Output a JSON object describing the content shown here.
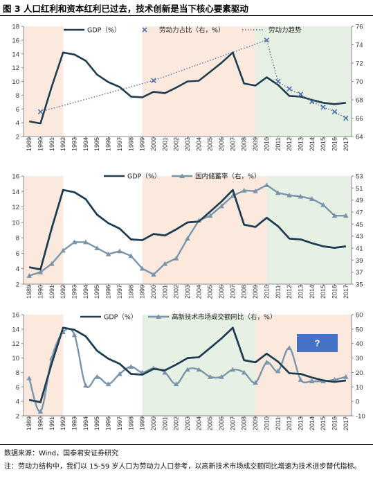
{
  "figure_title": "图 3 人口红利和资本红利已过去，技术创新是当下核心要素驱动",
  "source_text": "数据来源：Wind，国泰君安证券研究",
  "note_text": "注：劳动力结构中，我们以 15-59 岁人口为劳动力人口参考，以高新技术市场成交额同比增速为技术进步替代指标。",
  "colors": {
    "gdp_line": "#1f3c4f",
    "series_line": "#7a94aa",
    "labor_dot": "#4a6fa8",
    "shade_orange": "#fbe9de",
    "shade_green": "#e7f1e3",
    "question_box": "#4472c4"
  },
  "chart_data": [
    {
      "type": "line",
      "x": [
        "1989",
        "1990",
        "1991",
        "1992",
        "1993",
        "1994",
        "1995",
        "1996",
        "1997",
        "1998",
        "1999",
        "2000",
        "2001",
        "2002",
        "2003",
        "2004",
        "2005",
        "2006",
        "2007",
        "2008",
        "2009",
        "2010",
        "2011",
        "2012",
        "2013",
        "2014",
        "2015",
        "2016",
        "2017"
      ],
      "ylim": [
        2,
        18
      ],
      "y_ticks": [
        2,
        4,
        6,
        8,
        10,
        12,
        14,
        16,
        18
      ],
      "y2lim": [
        64,
        76
      ],
      "y2_ticks": [
        64,
        66,
        68,
        70,
        72,
        74,
        76
      ],
      "series": [
        {
          "name": "GDP（%）",
          "axis": "left",
          "style": "line",
          "values": [
            4.2,
            3.9,
            9.3,
            14.2,
            13.9,
            13.0,
            11.0,
            9.9,
            9.2,
            7.8,
            7.7,
            8.5,
            8.3,
            9.1,
            10.0,
            10.1,
            11.4,
            12.7,
            14.2,
            9.7,
            9.4,
            10.6,
            9.5,
            7.9,
            7.8,
            7.3,
            6.9,
            6.7,
            6.9
          ]
        },
        {
          "name": "劳动力占比（右，%）",
          "axis": "right",
          "style": "markers",
          "x": [
            "1990",
            "2000",
            "2010",
            "2011",
            "2012",
            "2013",
            "2014",
            "2015",
            "2016",
            "2017"
          ],
          "values": [
            66.7,
            70.1,
            74.5,
            70.0,
            69.2,
            68.6,
            67.8,
            67.2,
            66.7,
            66.0
          ]
        },
        {
          "name": "劳动力趋势",
          "axis": "right",
          "style": "dotted",
          "x": [
            "1990",
            "2000",
            "2010",
            "2011",
            "2012",
            "2013",
            "2014",
            "2015",
            "2016",
            "2017"
          ],
          "values": [
            66.7,
            70.1,
            74.5,
            70.0,
            69.2,
            68.6,
            67.8,
            67.2,
            66.7,
            66.0
          ]
        }
      ],
      "shaded_periods": [
        {
          "from": "1989",
          "to": "1992",
          "color": "orange"
        },
        {
          "from": "1999",
          "to": "2009",
          "color": "orange"
        },
        {
          "from": "2009",
          "to": "2017",
          "color": "green"
        }
      ]
    },
    {
      "type": "line",
      "x": [
        "1989",
        "1990",
        "1991",
        "1992",
        "1993",
        "1994",
        "1995",
        "1996",
        "1997",
        "1998",
        "1999",
        "2000",
        "2001",
        "2002",
        "2003",
        "2004",
        "2005",
        "2006",
        "2007",
        "2008",
        "2009",
        "2010",
        "2011",
        "2012",
        "2013",
        "2014",
        "2015",
        "2016",
        "2017"
      ],
      "ylim": [
        2,
        16
      ],
      "y_ticks": [
        2,
        4,
        6,
        8,
        10,
        12,
        14,
        16
      ],
      "y2lim": [
        35,
        53
      ],
      "y2_ticks": [
        35,
        37,
        39,
        41,
        43,
        45,
        47,
        49,
        51,
        53
      ],
      "series": [
        {
          "name": "GDP（%）",
          "axis": "left",
          "style": "line",
          "values": [
            4.2,
            3.9,
            9.3,
            14.2,
            13.9,
            13.0,
            11.0,
            9.9,
            9.2,
            7.8,
            7.7,
            8.5,
            8.3,
            9.1,
            10.0,
            10.1,
            11.4,
            12.7,
            14.2,
            9.7,
            9.4,
            10.6,
            9.5,
            7.9,
            7.8,
            7.3,
            6.9,
            6.7,
            6.9
          ]
        },
        {
          "name": "国内储蓄率（右，%）",
          "axis": "right",
          "style": "line-markers",
          "values": [
            36.4,
            37.0,
            38.4,
            40.6,
            42.0,
            42.0,
            41.0,
            40.0,
            40.5,
            39.7,
            37.6,
            36.6,
            38.4,
            39.3,
            42.6,
            45.6,
            46.4,
            48.0,
            49.7,
            50.6,
            50.5,
            51.5,
            50.2,
            49.8,
            49.6,
            49.2,
            48.2,
            46.4,
            46.4
          ]
        }
      ],
      "shaded_periods": [
        {
          "from": "1989",
          "to": "1992",
          "color": "orange"
        },
        {
          "from": "1999",
          "to": "2010",
          "color": "orange"
        },
        {
          "from": "2010",
          "to": "2017",
          "color": "green"
        }
      ]
    },
    {
      "type": "line",
      "x": [
        "1989",
        "1990",
        "1991",
        "1992",
        "1993",
        "1994",
        "1995",
        "1996",
        "1997",
        "1998",
        "1999",
        "2000",
        "2001",
        "2002",
        "2003",
        "2004",
        "2005",
        "2006",
        "2007",
        "2008",
        "2009",
        "2010",
        "2011",
        "2012",
        "2013",
        "2014",
        "2015",
        "2016",
        "2017"
      ],
      "ylim": [
        2,
        16
      ],
      "y_ticks": [
        2,
        4,
        6,
        8,
        10,
        12,
        14,
        16
      ],
      "y2lim": [
        -10,
        60
      ],
      "y2_ticks": [
        -10,
        0,
        10,
        20,
        30,
        40,
        50,
        60
      ],
      "series": [
        {
          "name": "GDP（%）",
          "axis": "left",
          "style": "line",
          "values": [
            4.2,
            3.9,
            9.3,
            14.2,
            13.9,
            13.0,
            11.0,
            9.9,
            9.2,
            7.8,
            7.7,
            8.5,
            8.3,
            9.1,
            10.0,
            10.1,
            11.4,
            12.7,
            14.2,
            9.7,
            9.4,
            10.6,
            9.5,
            7.9,
            7.8,
            7.3,
            6.9,
            6.7,
            6.9
          ]
        },
        {
          "name": "高新技术市场成交额同比（右，%）",
          "axis": "right",
          "style": "line-markers",
          "values": [
            16,
            -7,
            30,
            48,
            46,
            11,
            17,
            12,
            19,
            24,
            20,
            23,
            20,
            12,
            22,
            22,
            17,
            17,
            22,
            20,
            13,
            27,
            21,
            37,
            15,
            14,
            14,
            15,
            17
          ]
        }
      ],
      "shaded_periods": [
        {
          "from": "1989",
          "to": "1992",
          "color": "orange"
        },
        {
          "from": "1999",
          "to": "2009",
          "color": "green"
        },
        {
          "from": "2009",
          "to": "2017",
          "color": "orange"
        }
      ],
      "annotation": "?"
    }
  ]
}
